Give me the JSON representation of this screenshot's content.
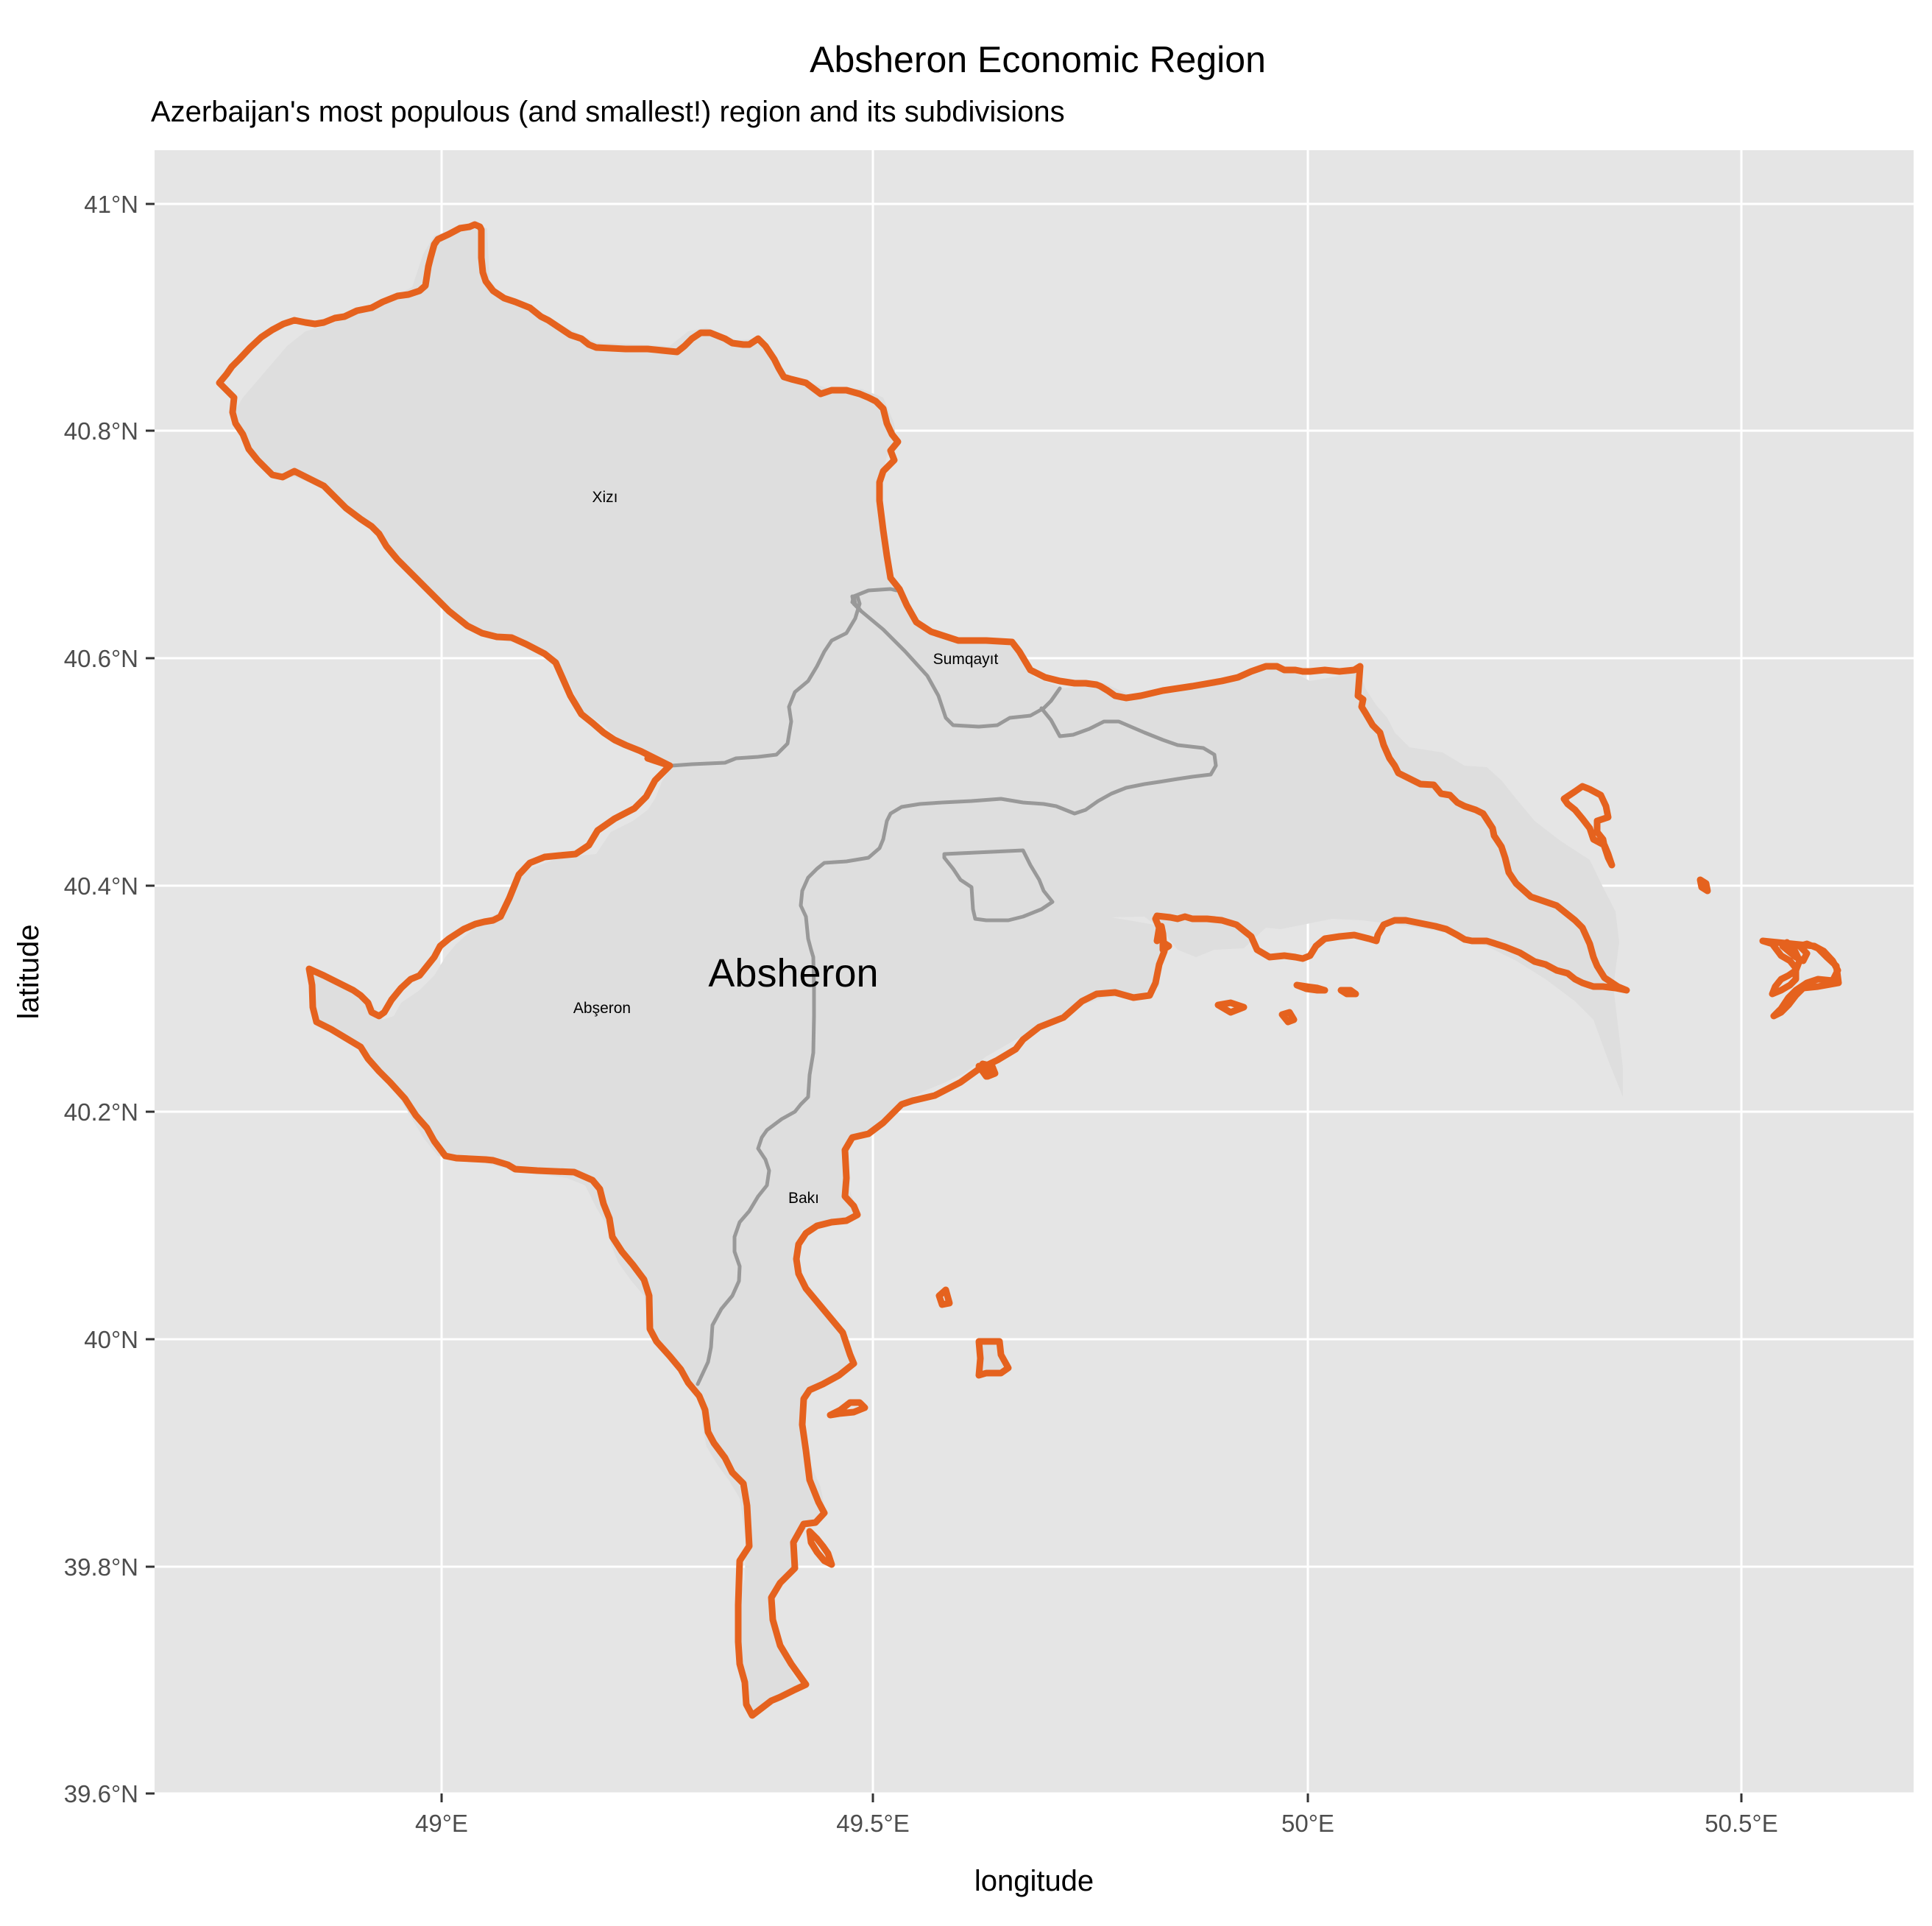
{
  "header": {
    "title": "Absheron Economic Region",
    "subtitle": "Azerbaijan's most populous (and smallest!) region and its subdivisions"
  },
  "axes": {
    "xlabel": "longitude",
    "ylabel": "latitude",
    "x_ticks": [
      "49°E",
      "49.5°E",
      "50°E",
      "50.5°E"
    ],
    "y_ticks": [
      "39.6°N",
      "39.8°N",
      "40°N",
      "40.2°N",
      "40.4°N",
      "40.6°N",
      "40.8°N",
      "41°N"
    ]
  },
  "colors": {
    "panel_background": "#e5e5e5",
    "grid": "#ffffff",
    "land_fill": "#dedede",
    "region_outline": "#e5621e",
    "subdivision_border": "#999999"
  },
  "map": {
    "region_label": "Absheron",
    "subdivisions": [
      {
        "name": "Xizı"
      },
      {
        "name": "Sumqayıt"
      },
      {
        "name": "Abşeron"
      },
      {
        "name": "Bakı"
      }
    ]
  }
}
